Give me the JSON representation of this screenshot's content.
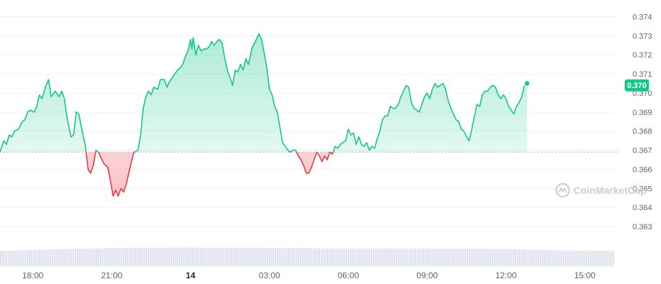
{
  "chart_data": {
    "type": "line",
    "title": "",
    "xlabel": "",
    "ylabel": "",
    "ylim": [
      0.362,
      0.3745
    ],
    "baseline": 0.3669,
    "current_price_label": "0.370",
    "current_price": 0.3704,
    "colors": {
      "up": "#16c784",
      "down": "#ea3943",
      "price_tag": "#16c784",
      "volume": "#cfd6e4"
    },
    "watermark": "CoinMarketCap",
    "watermark_icon": "coinmarketcap-logo-icon",
    "y_ticks": [
      "0.374",
      "0.373",
      "0.372",
      "0.371",
      "0.370",
      "0.369",
      "0.368",
      "0.367",
      "0.366",
      "0.365",
      "0.364",
      "0.363"
    ],
    "y_tick_values": [
      0.374,
      0.373,
      0.372,
      0.371,
      0.37,
      0.369,
      0.368,
      0.367,
      0.366,
      0.365,
      0.364,
      0.363
    ],
    "x_ticks": [
      {
        "label": "18:00",
        "hour": 18,
        "bold": false
      },
      {
        "label": "21:00",
        "hour": 21,
        "bold": false
      },
      {
        "label": "14",
        "hour": 24,
        "bold": true
      },
      {
        "label": "03:00",
        "hour": 27,
        "bold": false
      },
      {
        "label": "06:00",
        "hour": 30,
        "bold": false
      },
      {
        "label": "09:00",
        "hour": 33,
        "bold": false
      },
      {
        "label": "12:00",
        "hour": 36,
        "bold": false
      },
      {
        "label": "15:00",
        "hour": 39,
        "bold": false
      }
    ],
    "x_range_hours": [
      16.75,
      40.3
    ],
    "series": [
      {
        "points": [
          [
            16.75,
            0.3669
          ],
          [
            16.9,
            0.3675
          ],
          [
            17.0,
            0.3673
          ],
          [
            17.1,
            0.3678
          ],
          [
            17.2,
            0.3677
          ],
          [
            17.3,
            0.368
          ],
          [
            17.45,
            0.3681
          ],
          [
            17.6,
            0.3685
          ],
          [
            17.7,
            0.3686
          ],
          [
            17.8,
            0.369
          ],
          [
            17.9,
            0.3691
          ],
          [
            18.05,
            0.369
          ],
          [
            18.15,
            0.3693
          ],
          [
            18.25,
            0.3699
          ],
          [
            18.35,
            0.3697
          ],
          [
            18.5,
            0.3704
          ],
          [
            18.6,
            0.3707
          ],
          [
            18.7,
            0.3698
          ],
          [
            18.85,
            0.3701
          ],
          [
            19.0,
            0.3698
          ],
          [
            19.1,
            0.3701
          ],
          [
            19.2,
            0.3697
          ],
          [
            19.3,
            0.3687
          ],
          [
            19.45,
            0.3677
          ],
          [
            19.55,
            0.3678
          ],
          [
            19.65,
            0.369
          ],
          [
            19.75,
            0.3689
          ],
          [
            19.85,
            0.3682
          ],
          [
            20.0,
            0.3672
          ],
          [
            20.1,
            0.366
          ],
          [
            20.2,
            0.3658
          ],
          [
            20.3,
            0.3662
          ],
          [
            20.4,
            0.367
          ],
          [
            20.5,
            0.3669
          ],
          [
            20.6,
            0.3666
          ],
          [
            20.7,
            0.3663
          ],
          [
            20.85,
            0.3661
          ],
          [
            20.95,
            0.3654
          ],
          [
            21.05,
            0.3646
          ],
          [
            21.15,
            0.3649
          ],
          [
            21.25,
            0.3646
          ],
          [
            21.35,
            0.365
          ],
          [
            21.45,
            0.3648
          ],
          [
            21.55,
            0.3652
          ],
          [
            21.65,
            0.3658
          ],
          [
            21.75,
            0.3664
          ],
          [
            21.85,
            0.3669
          ],
          [
            22.0,
            0.367
          ],
          [
            22.1,
            0.3678
          ],
          [
            22.2,
            0.3692
          ],
          [
            22.3,
            0.3698
          ],
          [
            22.4,
            0.3701
          ],
          [
            22.5,
            0.3699
          ],
          [
            22.6,
            0.3703
          ],
          [
            22.75,
            0.3702
          ],
          [
            22.85,
            0.3707
          ],
          [
            23.0,
            0.3707
          ],
          [
            23.1,
            0.3703
          ],
          [
            23.2,
            0.3706
          ],
          [
            23.3,
            0.3708
          ],
          [
            23.4,
            0.371
          ],
          [
            23.5,
            0.3712
          ],
          [
            23.6,
            0.3713
          ],
          [
            23.7,
            0.3715
          ],
          [
            23.8,
            0.3719
          ],
          [
            23.9,
            0.3722
          ],
          [
            24.0,
            0.3728
          ],
          [
            24.05,
            0.3723
          ],
          [
            24.1,
            0.3729
          ],
          [
            24.2,
            0.372
          ],
          [
            24.3,
            0.3725
          ],
          [
            24.4,
            0.3722
          ],
          [
            24.5,
            0.3723
          ],
          [
            24.6,
            0.3723
          ],
          [
            24.7,
            0.3724
          ],
          [
            24.8,
            0.3727
          ],
          [
            24.9,
            0.3725
          ],
          [
            25.0,
            0.3727
          ],
          [
            25.1,
            0.3728
          ],
          [
            25.2,
            0.3726
          ],
          [
            25.3,
            0.3718
          ],
          [
            25.4,
            0.3712
          ],
          [
            25.5,
            0.3708
          ],
          [
            25.6,
            0.3704
          ],
          [
            25.7,
            0.3712
          ],
          [
            25.8,
            0.3711
          ],
          [
            25.9,
            0.3715
          ],
          [
            26.0,
            0.3712
          ],
          [
            26.1,
            0.3718
          ],
          [
            26.2,
            0.3715
          ],
          [
            26.35,
            0.3724
          ],
          [
            26.5,
            0.3728
          ],
          [
            26.6,
            0.3731
          ],
          [
            26.7,
            0.3728
          ],
          [
            26.8,
            0.3721
          ],
          [
            26.9,
            0.3713
          ],
          [
            27.0,
            0.3702
          ],
          [
            27.1,
            0.3699
          ],
          [
            27.2,
            0.3693
          ],
          [
            27.3,
            0.369
          ],
          [
            27.4,
            0.3682
          ],
          [
            27.5,
            0.3674
          ],
          [
            27.6,
            0.3672
          ],
          [
            27.7,
            0.367
          ],
          [
            27.8,
            0.3669
          ],
          [
            27.9,
            0.367
          ],
          [
            28.0,
            0.367
          ],
          [
            28.1,
            0.3667
          ],
          [
            28.2,
            0.3665
          ],
          [
            28.3,
            0.3662
          ],
          [
            28.4,
            0.3658
          ],
          [
            28.5,
            0.3658
          ],
          [
            28.6,
            0.3661
          ],
          [
            28.7,
            0.3665
          ],
          [
            28.8,
            0.3669
          ],
          [
            28.9,
            0.3667
          ],
          [
            29.0,
            0.3664
          ],
          [
            29.1,
            0.3667
          ],
          [
            29.2,
            0.3665
          ],
          [
            29.3,
            0.3669
          ],
          [
            29.4,
            0.3668
          ],
          [
            29.5,
            0.3672
          ],
          [
            29.6,
            0.3671
          ],
          [
            29.7,
            0.3673
          ],
          [
            29.8,
            0.3674
          ],
          [
            29.9,
            0.3675
          ],
          [
            30.0,
            0.3681
          ],
          [
            30.1,
            0.3678
          ],
          [
            30.2,
            0.3679
          ],
          [
            30.3,
            0.3673
          ],
          [
            30.4,
            0.3677
          ],
          [
            30.5,
            0.3673
          ],
          [
            30.6,
            0.3672
          ],
          [
            30.7,
            0.3674
          ],
          [
            30.8,
            0.367
          ],
          [
            30.9,
            0.3672
          ],
          [
            31.0,
            0.3671
          ],
          [
            31.1,
            0.3676
          ],
          [
            31.2,
            0.368
          ],
          [
            31.3,
            0.3686
          ],
          [
            31.4,
            0.3688
          ],
          [
            31.5,
            0.3688
          ],
          [
            31.6,
            0.3693
          ],
          [
            31.7,
            0.3692
          ],
          [
            31.8,
            0.3692
          ],
          [
            31.9,
            0.3694
          ],
          [
            32.0,
            0.3698
          ],
          [
            32.1,
            0.3701
          ],
          [
            32.2,
            0.3704
          ],
          [
            32.3,
            0.3703
          ],
          [
            32.4,
            0.3695
          ],
          [
            32.5,
            0.3692
          ],
          [
            32.6,
            0.3691
          ],
          [
            32.7,
            0.369
          ],
          [
            32.8,
            0.3694
          ],
          [
            32.9,
            0.3698
          ],
          [
            33.0,
            0.37
          ],
          [
            33.1,
            0.3697
          ],
          [
            33.2,
            0.3702
          ],
          [
            33.3,
            0.3705
          ],
          [
            33.4,
            0.3703
          ],
          [
            33.5,
            0.3704
          ],
          [
            33.6,
            0.3705
          ],
          [
            33.7,
            0.3702
          ],
          [
            33.8,
            0.3696
          ],
          [
            33.9,
            0.3692
          ],
          [
            34.0,
            0.3689
          ],
          [
            34.1,
            0.3686
          ],
          [
            34.2,
            0.3685
          ],
          [
            34.3,
            0.3681
          ],
          [
            34.4,
            0.368
          ],
          [
            34.5,
            0.3677
          ],
          [
            34.6,
            0.3675
          ],
          [
            34.7,
            0.3681
          ],
          [
            34.8,
            0.3688
          ],
          [
            34.9,
            0.3694
          ],
          [
            35.0,
            0.3693
          ],
          [
            35.1,
            0.3699
          ],
          [
            35.2,
            0.3701
          ],
          [
            35.3,
            0.3701
          ],
          [
            35.4,
            0.3703
          ],
          [
            35.5,
            0.3704
          ],
          [
            35.6,
            0.3703
          ],
          [
            35.7,
            0.3699
          ],
          [
            35.8,
            0.3697
          ],
          [
            35.9,
            0.3699
          ],
          [
            36.0,
            0.3697
          ],
          [
            36.1,
            0.3693
          ],
          [
            36.2,
            0.3691
          ],
          [
            36.3,
            0.3689
          ],
          [
            36.4,
            0.3693
          ],
          [
            36.5,
            0.3695
          ],
          [
            36.6,
            0.3698
          ],
          [
            36.7,
            0.3704
          ],
          [
            36.8,
            0.3705
          ]
        ]
      }
    ],
    "volume": {
      "x_start_hour": 16.75,
      "x_end_hour": 40.3,
      "bars": 320,
      "profile": [
        [
          16.75,
          0.35
        ],
        [
          18.0,
          0.38
        ],
        [
          19.5,
          0.4
        ],
        [
          21.0,
          0.42
        ],
        [
          24.0,
          0.43
        ],
        [
          27.0,
          0.42
        ],
        [
          30.0,
          0.41
        ],
        [
          33.0,
          0.41
        ],
        [
          36.0,
          0.4
        ],
        [
          38.0,
          0.37
        ],
        [
          40.3,
          0.35
        ]
      ]
    }
  }
}
